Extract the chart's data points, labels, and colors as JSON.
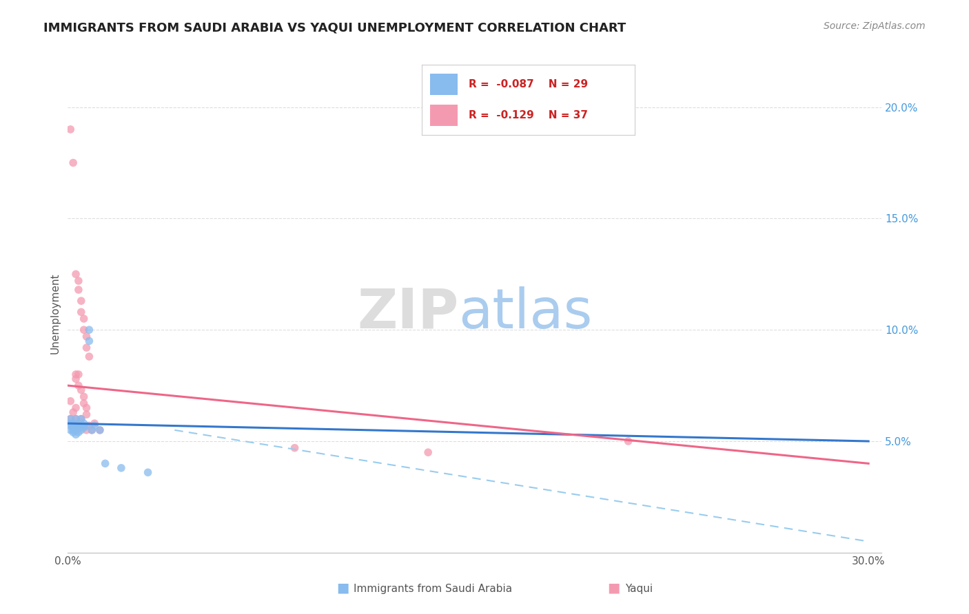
{
  "title": "IMMIGRANTS FROM SAUDI ARABIA VS YAQUI UNEMPLOYMENT CORRELATION CHART",
  "source": "Source: ZipAtlas.com",
  "ylabel": "Unemployment",
  "right_yticks": [
    "5.0%",
    "10.0%",
    "15.0%",
    "20.0%"
  ],
  "right_ytick_vals": [
    0.05,
    0.1,
    0.15,
    0.2
  ],
  "blue_scatter": [
    [
      0.001,
      0.055
    ],
    [
      0.001,
      0.057
    ],
    [
      0.001,
      0.06
    ],
    [
      0.001,
      0.058
    ],
    [
      0.002,
      0.056
    ],
    [
      0.002,
      0.055
    ],
    [
      0.002,
      0.058
    ],
    [
      0.002,
      0.054
    ],
    [
      0.003,
      0.057
    ],
    [
      0.003,
      0.055
    ],
    [
      0.003,
      0.06
    ],
    [
      0.003,
      0.053
    ],
    [
      0.004,
      0.056
    ],
    [
      0.004,
      0.058
    ],
    [
      0.004,
      0.054
    ],
    [
      0.005,
      0.057
    ],
    [
      0.005,
      0.06
    ],
    [
      0.005,
      0.055
    ],
    [
      0.006,
      0.056
    ],
    [
      0.006,
      0.058
    ],
    [
      0.007,
      0.057
    ],
    [
      0.008,
      0.1
    ],
    [
      0.008,
      0.095
    ],
    [
      0.009,
      0.055
    ],
    [
      0.01,
      0.057
    ],
    [
      0.012,
      0.055
    ],
    [
      0.014,
      0.04
    ],
    [
      0.02,
      0.038
    ],
    [
      0.03,
      0.036
    ]
  ],
  "pink_scatter": [
    [
      0.001,
      0.19
    ],
    [
      0.002,
      0.175
    ],
    [
      0.003,
      0.125
    ],
    [
      0.004,
      0.122
    ],
    [
      0.004,
      0.118
    ],
    [
      0.005,
      0.113
    ],
    [
      0.005,
      0.108
    ],
    [
      0.006,
      0.105
    ],
    [
      0.006,
      0.1
    ],
    [
      0.007,
      0.097
    ],
    [
      0.007,
      0.092
    ],
    [
      0.008,
      0.088
    ],
    [
      0.003,
      0.078
    ],
    [
      0.004,
      0.08
    ],
    [
      0.004,
      0.075
    ],
    [
      0.005,
      0.073
    ],
    [
      0.006,
      0.07
    ],
    [
      0.006,
      0.067
    ],
    [
      0.007,
      0.065
    ],
    [
      0.007,
      0.062
    ],
    [
      0.001,
      0.06
    ],
    [
      0.002,
      0.063
    ],
    [
      0.003,
      0.065
    ],
    [
      0.003,
      0.06
    ],
    [
      0.004,
      0.058
    ],
    [
      0.005,
      0.06
    ],
    [
      0.006,
      0.057
    ],
    [
      0.007,
      0.055
    ],
    [
      0.008,
      0.057
    ],
    [
      0.009,
      0.055
    ],
    [
      0.01,
      0.058
    ],
    [
      0.012,
      0.055
    ],
    [
      0.001,
      0.068
    ],
    [
      0.003,
      0.08
    ],
    [
      0.085,
      0.047
    ],
    [
      0.135,
      0.045
    ],
    [
      0.21,
      0.05
    ]
  ],
  "blue_line": {
    "x": [
      0.0,
      0.3
    ],
    "y": [
      0.058,
      0.05
    ]
  },
  "blue_dashed_line": {
    "x": [
      0.04,
      0.3
    ],
    "y": [
      0.055,
      0.005
    ]
  },
  "pink_line": {
    "x": [
      0.0,
      0.3
    ],
    "y": [
      0.075,
      0.04
    ]
  },
  "bg_color": "#ffffff",
  "scatter_blue_color": "#88bbee",
  "scatter_pink_color": "#f49ab0",
  "line_blue_color": "#3377cc",
  "line_blue_dashed_color": "#99ccee",
  "line_pink_color": "#ee6688",
  "xlim": [
    0.0,
    0.305
  ],
  "ylim": [
    0.0,
    0.215
  ],
  "grid_color": "#dddddd",
  "title_color": "#222222",
  "source_color": "#888888",
  "axis_label_color": "#555555",
  "right_tick_color": "#4499dd",
  "legend_text_color": "#cc2222",
  "legend_blue_color": "#88bbee",
  "legend_pink_color": "#f49ab0",
  "watermark_zip_color": "#dddddd",
  "watermark_atlas_color": "#aaccee"
}
